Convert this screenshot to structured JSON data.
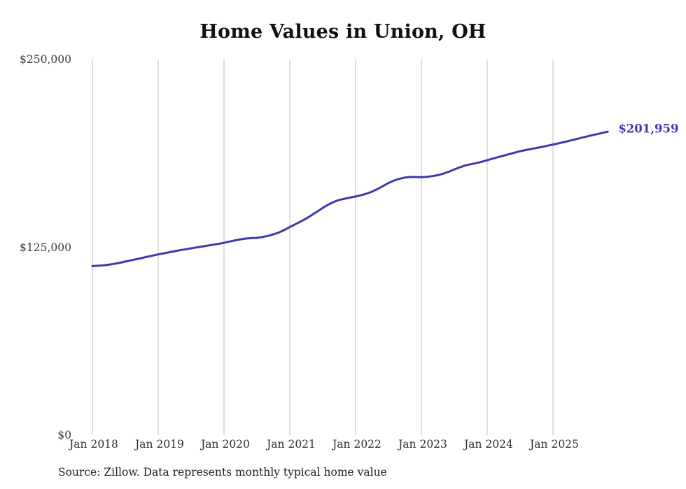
{
  "source_note": "Source: Zillow. Data represents monthly typical home value",
  "chart_data": {
    "type": "line",
    "title": "Home Values in Union, OH",
    "xlabel": "",
    "ylabel": "",
    "ylim": [
      0,
      250000
    ],
    "grid": "vertical-only",
    "legend": "none",
    "x_start": "2018-01",
    "x_frequency": "monthly",
    "x_tick_labels": [
      "Jan 2018",
      "Jan 2019",
      "Jan 2020",
      "Jan 2021",
      "Jan 2022",
      "Jan 2023",
      "Jan 2024",
      "Jan 2025"
    ],
    "y_ticks": [
      {
        "label": "$0",
        "value": 0
      },
      {
        "label": "$125,000",
        "value": 125000
      },
      {
        "label": "$250,000",
        "value": 250000
      }
    ],
    "end_label": "$201,959",
    "latest_value": 201959,
    "colors": {
      "line": "#3d3bac",
      "grid": "#cccccc",
      "title": "#111111",
      "axis_text": "#3a3a3a"
    },
    "values": [
      112500,
      112700,
      113000,
      113400,
      114000,
      114700,
      115500,
      116300,
      117100,
      117900,
      118700,
      119500,
      120300,
      121000,
      121700,
      122400,
      123100,
      123700,
      124300,
      124900,
      125500,
      126100,
      126700,
      127300,
      128000,
      128800,
      129600,
      130300,
      130800,
      131100,
      131300,
      131800,
      132600,
      133600,
      134800,
      136500,
      138500,
      140300,
      142200,
      144200,
      146400,
      148800,
      151200,
      153400,
      155200,
      156500,
      157300,
      158100,
      158800,
      159700,
      160700,
      162000,
      163800,
      165800,
      167800,
      169400,
      170600,
      171400,
      171800,
      171800,
      171600,
      171900,
      172400,
      173000,
      174000,
      175300,
      176800,
      178200,
      179400,
      180300,
      181000,
      181900,
      183000,
      184000,
      185000,
      186000,
      187000,
      188000,
      188900,
      189700,
      190400,
      191100,
      191800,
      192600,
      193400,
      194200,
      195000,
      195900,
      196800,
      197700,
      198600,
      199500,
      200300,
      201100,
      201959
    ]
  }
}
